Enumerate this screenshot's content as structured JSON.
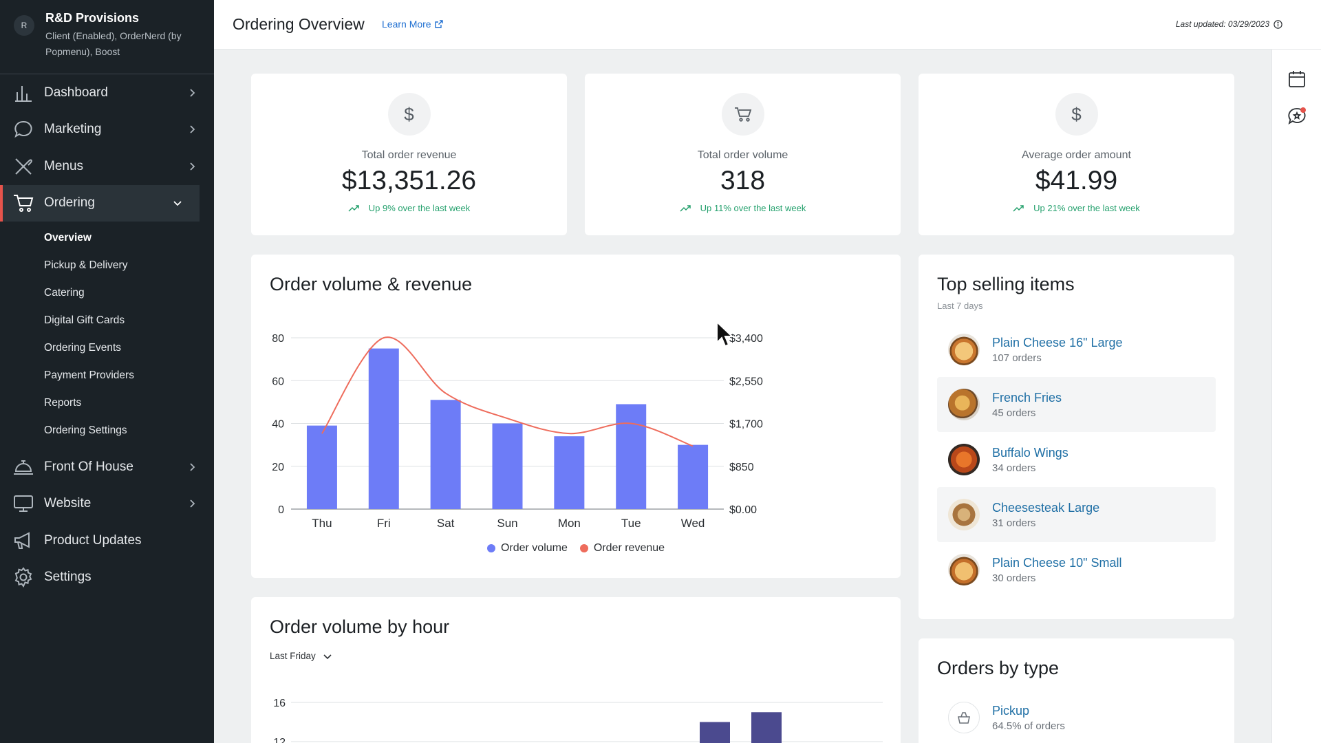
{
  "org": {
    "avatar": "R",
    "name": "R&D Provisions",
    "subtitle_line1": "Client (Enabled), OrderNerd (by",
    "subtitle_line2": "Popmenu), Boost"
  },
  "nav": [
    {
      "label": "Dashboard",
      "icon": "bar-chart-icon"
    },
    {
      "label": "Marketing",
      "icon": "chat-bubble-icon"
    },
    {
      "label": "Menus",
      "icon": "utensils-icon"
    },
    {
      "label": "Ordering",
      "icon": "cart-icon"
    },
    {
      "label": "Front Of House",
      "icon": "service-bell-icon"
    },
    {
      "label": "Website",
      "icon": "monitor-icon"
    },
    {
      "label": "Product Updates",
      "icon": "megaphone-icon"
    },
    {
      "label": "Settings",
      "icon": "gear-icon"
    }
  ],
  "subnav": [
    "Overview",
    "Pickup & Delivery",
    "Catering",
    "Digital Gift Cards",
    "Ordering Events",
    "Payment Providers",
    "Reports",
    "Ordering Settings"
  ],
  "header": {
    "title": "Ordering Overview",
    "learn_more": "Learn More",
    "last_updated": "Last updated: 03/29/2023"
  },
  "kpis": [
    {
      "label": "Total order revenue",
      "value": "$13,351.26",
      "trend": "Up 9% over the last week",
      "icon": "$"
    },
    {
      "label": "Total order volume",
      "value": "318",
      "trend": "Up 11% over the last week",
      "icon": "cart"
    },
    {
      "label": "Average order amount",
      "value": "$41.99",
      "trend": "Up 21% over the last week",
      "icon": "$"
    }
  ],
  "volume_chart_title": "Order volume & revenue",
  "chart_data": [
    {
      "type": "bar",
      "categories": [
        "Thu",
        "Fri",
        "Sat",
        "Sun",
        "Mon",
        "Tue",
        "Wed"
      ],
      "series": [
        {
          "name": "Order volume",
          "kind": "bar",
          "axis": "left",
          "color": "#6d7cf7",
          "values": [
            39,
            75,
            51,
            40,
            34,
            49,
            30
          ]
        },
        {
          "name": "Order revenue",
          "kind": "line",
          "axis": "right",
          "color": "#ee6c5c",
          "values": [
            1500,
            3400,
            2300,
            1800,
            1500,
            1700,
            1250
          ]
        }
      ],
      "left_ticks": [
        "0",
        "20",
        "40",
        "60",
        "80"
      ],
      "right_ticks": [
        "$0.00",
        "$850",
        "$1,700",
        "$2,550",
        "$3,400"
      ],
      "ylim_left": [
        0,
        80
      ],
      "ylim_right": [
        0,
        3400
      ],
      "legend_placement": "bottom",
      "grid": true
    },
    {
      "type": "bar",
      "title": "Order volume by hour",
      "filter": "Last Friday",
      "y_ticks_visible": [
        "16",
        "12"
      ],
      "visible_bars": [
        {
          "color": "#4b4a8f",
          "value": 14
        },
        {
          "color": "#4b4a8f",
          "value": 15
        }
      ],
      "grid": true
    }
  ],
  "hour_chart": {
    "title": "Order volume by hour",
    "filter": "Last Friday"
  },
  "top_selling": {
    "title": "Top selling items",
    "subtitle": "Last 7 days",
    "items": [
      {
        "name": "Plain Cheese 16\" Large",
        "orders": "107 orders"
      },
      {
        "name": "French Fries",
        "orders": "45 orders"
      },
      {
        "name": "Buffalo Wings",
        "orders": "34 orders"
      },
      {
        "name": "Cheesesteak Large",
        "orders": "31 orders"
      },
      {
        "name": "Plain Cheese 10\" Small",
        "orders": "30 orders"
      }
    ]
  },
  "orders_by_type": {
    "title": "Orders by type",
    "items": [
      {
        "name": "Pickup",
        "share": "64.5% of orders"
      }
    ]
  },
  "colors": {
    "sidebar": "#1b2227",
    "accent": "#e5534b",
    "bar": "#6d7cf7",
    "line": "#ee6c5c",
    "trend": "#23a06c",
    "link": "#1f6fa5"
  }
}
